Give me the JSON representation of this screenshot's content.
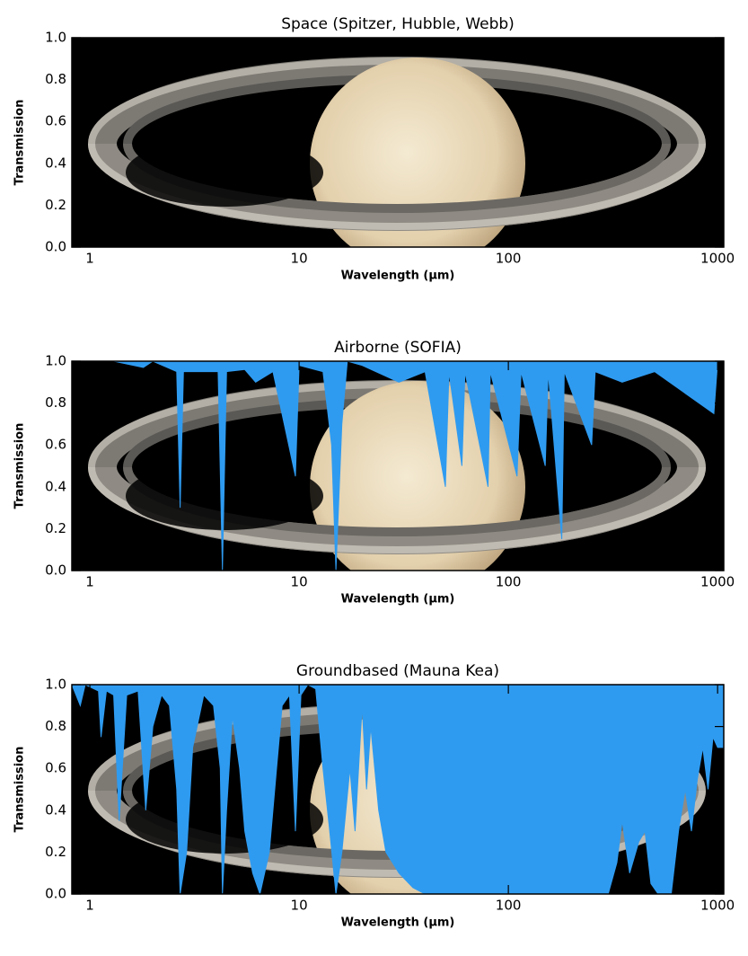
{
  "chart_data": [
    {
      "type": "area",
      "title": "Space (Spitzer, Hubble, Webb)",
      "x_label": "Wavelength (μm)",
      "y_label": "Transmission",
      "xscale": "log",
      "color": "#2f9bf0",
      "x": [
        0.82,
        1070
      ],
      "values": [
        1.0,
        1.0
      ],
      "xlim": [
        0.82,
        1070
      ],
      "ylim": [
        0,
        1.0
      ],
      "xticks": [
        1,
        10,
        100,
        1000
      ],
      "yticks": [
        {
          "value": 0,
          "label": "0.0"
        },
        {
          "value": 0.2,
          "label": "0.2"
        },
        {
          "value": 0.4,
          "label": "0.4"
        },
        {
          "value": 0.6,
          "label": "0.6"
        },
        {
          "value": 0.8,
          "label": "0.8"
        },
        {
          "value": 1,
          "label": "1.0"
        }
      ]
    },
    {
      "type": "area",
      "title": "Airborne (SOFIA)",
      "x_label": "Wavelength (μm)",
      "y_label": "Transmission",
      "xscale": "log",
      "color": "#2f9bf0",
      "x": [
        0.82,
        1.3,
        1.8,
        2.0,
        2.6,
        2.7,
        2.8,
        4.1,
        4.3,
        4.5,
        5.5,
        6.2,
        7.5,
        9.6,
        10,
        13,
        14.3,
        15,
        16,
        17,
        20,
        30,
        40,
        50,
        52,
        60,
        62,
        80,
        82,
        110,
        115,
        150,
        155,
        180,
        185,
        250,
        260,
        350,
        500,
        960,
        1000,
        1070
      ],
      "values": [
        1.0,
        1.0,
        0.97,
        1.0,
        0.95,
        0.3,
        0.95,
        0.95,
        0.0,
        0.95,
        0.96,
        0.9,
        0.95,
        0.45,
        0.98,
        0.95,
        0.6,
        0.0,
        0.7,
        1.0,
        0.98,
        0.9,
        0.95,
        0.4,
        0.95,
        0.5,
        0.95,
        0.4,
        0.95,
        0.45,
        0.95,
        0.5,
        0.95,
        0.15,
        0.95,
        0.6,
        0.95,
        0.9,
        0.95,
        0.75,
        1.0,
        1.0
      ],
      "xlim": [
        0.82,
        1070
      ],
      "ylim": [
        0,
        1.0
      ],
      "xticks": [
        1,
        10,
        100,
        1000
      ],
      "yticks": [
        {
          "value": 0,
          "label": "0.0"
        },
        {
          "value": 0.2,
          "label": "0.2"
        },
        {
          "value": 0.4,
          "label": "0.4"
        },
        {
          "value": 0.6,
          "label": "0.6"
        },
        {
          "value": 0.8,
          "label": "0.8"
        },
        {
          "value": 1,
          "label": "1.0"
        }
      ]
    },
    {
      "type": "area",
      "title": "Groundbased (Mauna Kea)",
      "x_label": "Wavelength (μm)",
      "y_label": "Transmission",
      "xscale": "log",
      "color": "#2f9bf0",
      "x": [
        0.82,
        0.9,
        0.95,
        1.1,
        1.13,
        1.2,
        1.3,
        1.38,
        1.5,
        1.7,
        1.85,
        2.0,
        2.2,
        2.4,
        2.6,
        2.7,
        2.9,
        3.1,
        3.5,
        3.9,
        4.2,
        4.3,
        4.5,
        4.8,
        5.2,
        5.5,
        6.0,
        6.5,
        7.2,
        7.8,
        8.3,
        9.0,
        9.6,
        10.2,
        11,
        12,
        13,
        14,
        15,
        16,
        17.5,
        18.5,
        20,
        21,
        22,
        24,
        26,
        30,
        35,
        40,
        300,
        330,
        350,
        380,
        420,
        450,
        480,
        520,
        600,
        650,
        700,
        750,
        800,
        850,
        900,
        950,
        1000,
        1070
      ],
      "values": [
        1.0,
        0.9,
        1.0,
        0.97,
        0.75,
        0.97,
        0.95,
        0.35,
        0.95,
        0.97,
        0.4,
        0.8,
        0.95,
        0.9,
        0.5,
        0.0,
        0.2,
        0.7,
        0.95,
        0.9,
        0.6,
        0.0,
        0.4,
        0.85,
        0.6,
        0.3,
        0.1,
        0.0,
        0.2,
        0.6,
        0.9,
        0.95,
        0.3,
        0.95,
        1.0,
        0.98,
        0.6,
        0.3,
        0.0,
        0.2,
        0.6,
        0.3,
        0.9,
        0.5,
        0.8,
        0.4,
        0.2,
        0.1,
        0.03,
        0.0,
        0.0,
        0.15,
        0.35,
        0.1,
        0.25,
        0.3,
        0.05,
        0.0,
        0.0,
        0.3,
        0.5,
        0.3,
        0.55,
        0.7,
        0.5,
        0.75,
        0.7,
        0.7
      ],
      "xlim": [
        0.82,
        1070
      ],
      "ylim": [
        0,
        1.0
      ],
      "xticks": [
        1,
        10,
        100,
        1000
      ],
      "yticks": [
        {
          "value": 0,
          "label": "0.0"
        },
        {
          "value": 0.2,
          "label": "0.2"
        },
        {
          "value": 0.4,
          "label": "0.4"
        },
        {
          "value": 0.6,
          "label": "0.6"
        },
        {
          "value": 0.8,
          "label": "0.8"
        },
        {
          "value": 1,
          "label": "1.0"
        }
      ]
    }
  ]
}
